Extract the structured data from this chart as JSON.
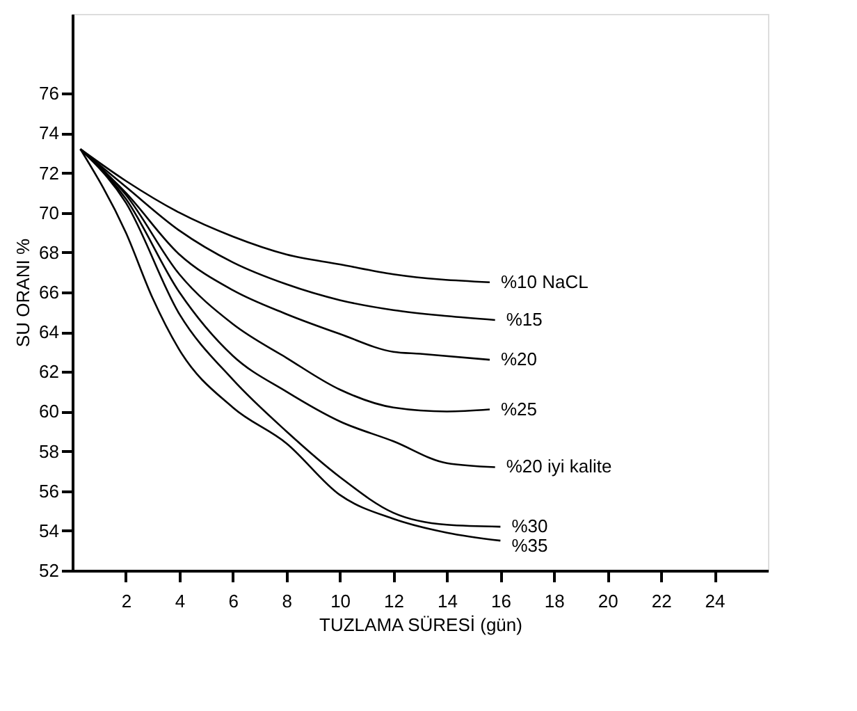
{
  "chart_data": {
    "type": "line",
    "xlabel": "TUZLAMA SÜRESİ (gün)",
    "ylabel": "SU ORANI %",
    "xlim": [
      0,
      26
    ],
    "ylim": [
      52,
      80
    ],
    "xticks": [
      2,
      4,
      6,
      8,
      10,
      12,
      14,
      16,
      18,
      20,
      22,
      24
    ],
    "yticks": [
      52,
      54,
      56,
      58,
      60,
      62,
      64,
      66,
      68,
      70,
      72,
      74,
      76
    ],
    "grid": false,
    "marker": "none",
    "line_style": "solid",
    "series": [
      {
        "name": "%10 NaCL",
        "color": "#000000",
        "x": [
          0.3,
          2,
          4,
          6,
          8,
          10,
          12,
          15.6
        ],
        "values": [
          73.2,
          71.6,
          70.0,
          68.8,
          67.9,
          67.4,
          66.9,
          66.5
        ]
      },
      {
        "name": "%15",
        "color": "#000000",
        "x": [
          0.3,
          2,
          4,
          6,
          8,
          10,
          12,
          14,
          15.8
        ],
        "values": [
          73.2,
          71.3,
          69.1,
          67.5,
          66.4,
          65.6,
          65.1,
          64.8,
          64.6
        ]
      },
      {
        "name": "%20",
        "color": "#000000",
        "x": [
          0.3,
          2,
          4,
          6,
          8,
          10,
          12,
          13,
          15.6
        ],
        "values": [
          73.2,
          71.0,
          67.9,
          66.1,
          64.9,
          63.9,
          63.0,
          62.9,
          62.6
        ]
      },
      {
        "name": "%25",
        "color": "#000000",
        "x": [
          0.3,
          2,
          4,
          6,
          8,
          10,
          12,
          14,
          15.6
        ],
        "values": [
          73.2,
          70.9,
          66.9,
          64.4,
          62.7,
          61.1,
          60.2,
          60.0,
          60.1
        ]
      },
      {
        "name": "%20   iyi kalite",
        "color": "#000000",
        "x": [
          0.3,
          2,
          4,
          6,
          8,
          10,
          12,
          14,
          15.8
        ],
        "values": [
          73.2,
          70.7,
          66.0,
          62.8,
          61.0,
          59.5,
          58.5,
          57.4,
          57.2
        ]
      },
      {
        "name": "%30",
        "color": "#000000",
        "x": [
          0.3,
          2,
          4,
          6,
          8,
          10,
          12,
          14,
          16
        ],
        "values": [
          73.2,
          70.5,
          64.9,
          61.6,
          59.0,
          56.7,
          54.9,
          54.3,
          54.2
        ]
      },
      {
        "name": "%35",
        "color": "#000000",
        "x": [
          0.3,
          2,
          3,
          4,
          6,
          8,
          10,
          12,
          14,
          16
        ],
        "values": [
          73.2,
          69.0,
          65.7,
          63.1,
          60.2,
          58.4,
          55.8,
          54.6,
          53.9,
          53.5
        ]
      }
    ]
  }
}
